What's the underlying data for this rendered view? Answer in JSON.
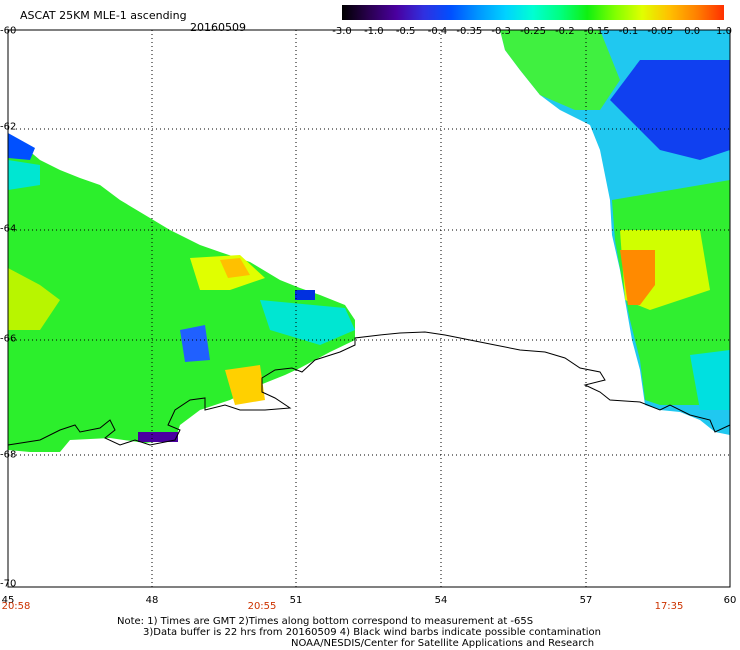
{
  "header": {
    "title": "ASCAT 25KM MLE-1 ascending",
    "date": "20160509"
  },
  "colorbar": {
    "ticks": [
      "-3.0",
      "-1.0",
      "-0.5",
      "-0.4",
      "-0.35",
      "-0.3",
      "-0.25",
      "-0.2",
      "-0.15",
      "-0.1",
      "-0.05",
      "0.0",
      "1.0"
    ],
    "colors": [
      "#000000",
      "#2a0050",
      "#4a00a0",
      "#3030e0",
      "#0050ff",
      "#0096ff",
      "#00d2ff",
      "#00ffd2",
      "#00ff80",
      "#10f010",
      "#80ff00",
      "#e0ff00",
      "#ffc000",
      "#ff8000",
      "#ff3000"
    ]
  },
  "axes": {
    "lat_labels": [
      "-60",
      "-62",
      "-64",
      "-66",
      "-68",
      "-70"
    ],
    "lon_labels": [
      "45",
      "48",
      "51",
      "54",
      "57",
      "60"
    ],
    "time_labels": [
      "20:58",
      "20:55",
      "17:35"
    ]
  },
  "notes": {
    "line1": "Note: 1) Times are GMT 2)Times along bottom correspond to measurement at -65S",
    "line2": "3)Data buffer is 22 hrs from 20160509 4) Black wind barbs indicate possible contamination",
    "line3": "NOAA/NESDIS/Center for Satellite Applications and Research"
  }
}
